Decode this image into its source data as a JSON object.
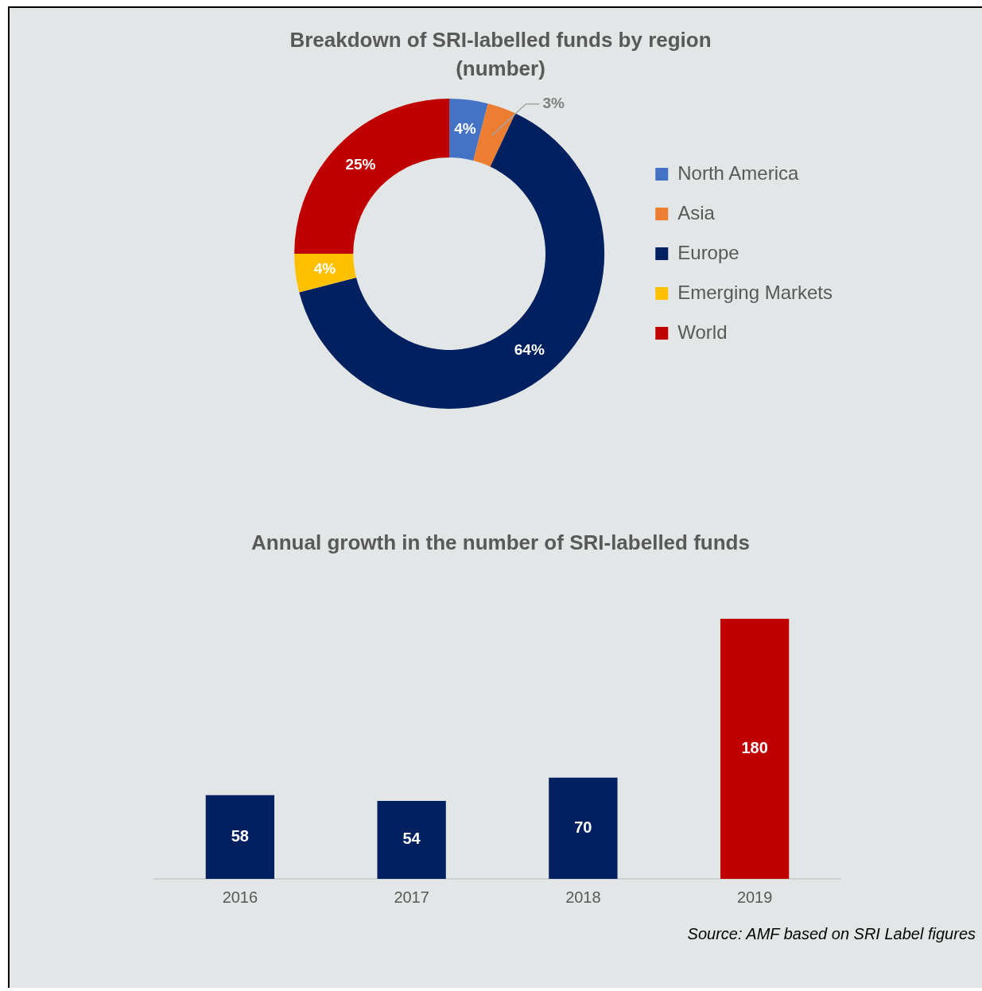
{
  "chart_data": [
    {
      "type": "donut",
      "title": "Breakdown of SRI-labelled funds by region (number)",
      "categories": [
        "North America",
        "Asia",
        "Europe",
        "Emerging Markets",
        "World"
      ],
      "values": [
        4,
        3,
        64,
        4,
        25
      ],
      "colors": [
        "#4472c4",
        "#ed7d31",
        "#002060",
        "#ffc000",
        "#c00000"
      ],
      "value_labels": [
        "4%",
        "3%",
        "64%",
        "4%",
        "25%"
      ],
      "legend": "right"
    },
    {
      "type": "bar",
      "title": "Annual growth in the number of SRI-labelled funds",
      "categories": [
        "2016",
        "2017",
        "2018",
        "2019"
      ],
      "values": [
        58,
        54,
        70,
        180
      ],
      "colors": [
        "#002060",
        "#002060",
        "#002060",
        "#c00000"
      ],
      "data_labels": true,
      "tick_labels": "x",
      "grid": false,
      "annotations": [
        "Source: AMF based on SRI Label figures"
      ]
    }
  ]
}
